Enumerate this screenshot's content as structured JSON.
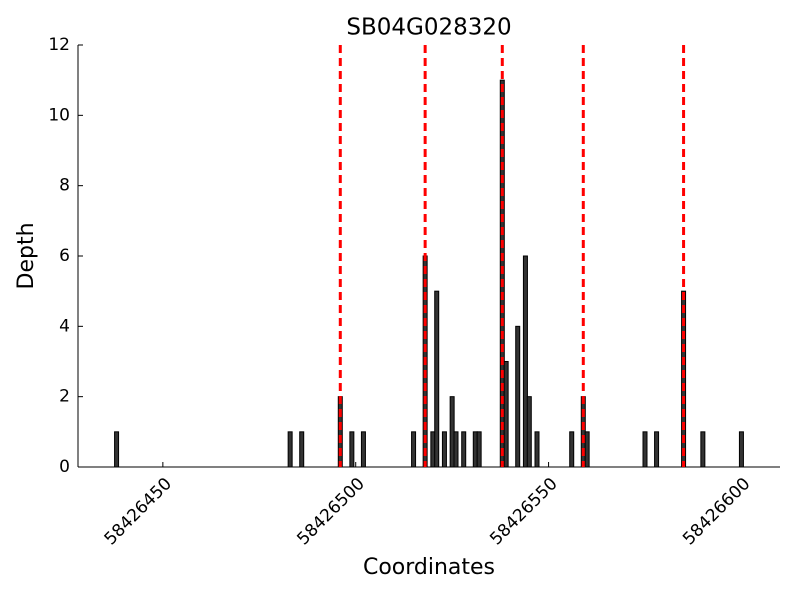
{
  "chart_data": {
    "type": "bar",
    "title": "SB04G028320",
    "x_label": "Coordinates",
    "y_label": "Depth",
    "x": [
      58426438,
      58426483,
      58426486,
      58426496,
      58426499,
      58426502,
      58426515,
      58426518,
      58426520,
      58426521,
      58426523,
      58426525,
      58426526,
      58426528,
      58426531,
      58426532,
      58426538,
      58426539,
      58426542,
      58426544,
      58426545,
      58426547,
      58426556,
      58426559,
      58426560,
      58426575,
      58426578,
      58426585,
      58426590,
      58426600
    ],
    "values": [
      1,
      1,
      1,
      2,
      1,
      1,
      1,
      6,
      1,
      5,
      1,
      2,
      1,
      1,
      1,
      1,
      11,
      3,
      4,
      6,
      2,
      1,
      1,
      2,
      1,
      1,
      1,
      5,
      1,
      1
    ],
    "color": "#333333",
    "vlines": [
      58426496,
      58426518,
      58426538,
      58426559,
      58426585
    ],
    "vline_color": "#ff0000",
    "xlim": [
      58426428,
      58426610
    ],
    "xticks": [
      58426450,
      58426500,
      58426550,
      58426600
    ],
    "ylim": [
      0,
      12
    ],
    "yticks": [
      0,
      2,
      4,
      6,
      8,
      10,
      12
    ]
  }
}
